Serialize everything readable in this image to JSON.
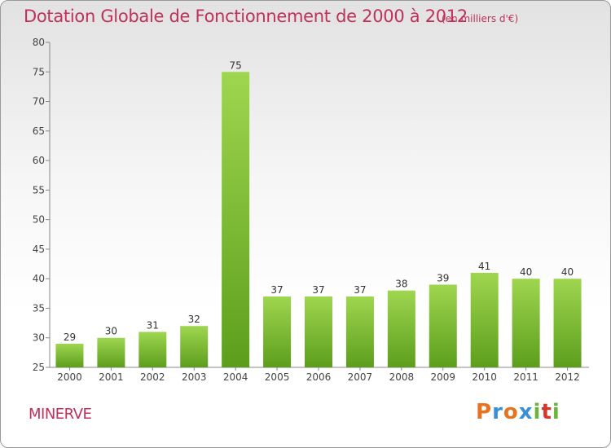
{
  "header": {
    "title": "Dotation Globale de Fonctionnement de 2000 à 2012",
    "unit_note": "(en milliers d'€)"
  },
  "footer": {
    "commune": "MINERVE",
    "logo_text": "Proxiti",
    "logo_colors": [
      "#e8731e",
      "#3b8fd6",
      "#e8731e",
      "#3b8fd6",
      "#6cb33f",
      "#d6372b",
      "#6cb33f"
    ]
  },
  "colors": {
    "accent": "#c0315a",
    "bar_top": "#9fd650",
    "bar_bottom": "#5c9e1c"
  },
  "chart_data": {
    "type": "bar",
    "title": "Dotation Globale de Fonctionnement de 2000 à 2012",
    "subtitle": "(en milliers d'€)",
    "categories": [
      "2000",
      "2001",
      "2002",
      "2003",
      "2004",
      "2005",
      "2006",
      "2007",
      "2008",
      "2009",
      "2010",
      "2011",
      "2012"
    ],
    "values": [
      29,
      30,
      31,
      32,
      75,
      37,
      37,
      37,
      38,
      39,
      41,
      40,
      40
    ],
    "ylim": [
      25,
      80
    ],
    "yticks": [
      25,
      30,
      35,
      40,
      45,
      50,
      55,
      60,
      65,
      70,
      75,
      80
    ],
    "grid": false,
    "data_labels": true
  }
}
